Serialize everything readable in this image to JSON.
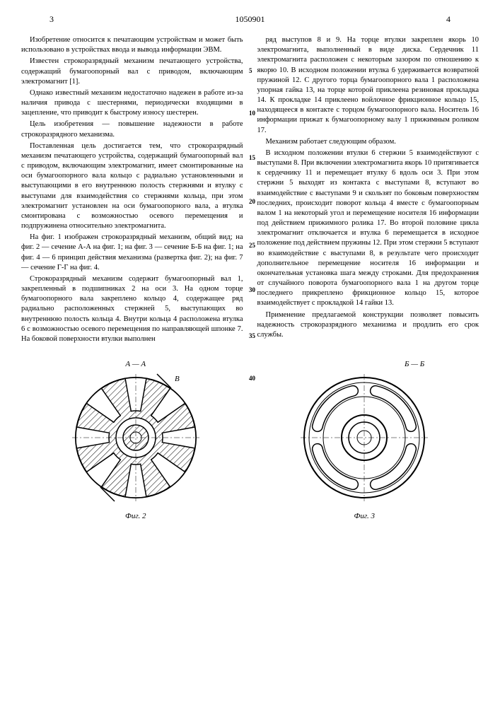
{
  "header": {
    "page_left": "3",
    "doc_number": "1050901",
    "page_right": "4"
  },
  "line_markers": [
    "5",
    "10",
    "15",
    "20",
    "25",
    "30",
    "35",
    "40"
  ],
  "left_column": {
    "p1": "Изобретение относится к печатающим устройствам и может быть использовано в устройствах ввода и вывода информации ЭВМ.",
    "p2": "Известен строкоразрядный механизм печатающего устройства, содержащий бумагоопорный вал с приводом, включающим электромагнит [1].",
    "p3": "Однако известный механизм недостаточно надежен в работе из-за наличия привода с шестернями, периодически входящими в зацепление, что приводит к быстрому износу шестерен.",
    "p4": "Цель изобретения — повышение надежности в работе строкоразрядного механизма.",
    "p5": "Поставленная цель достигается тем, что строкоразрядный механизм печатающего устройства, содержащий бумагоопорный вал с приводом, включающим электромагнит, имеет смонтированные на оси бумагоопорного вала кольцо с радиально установленными и выступающими в его внутреннюю полость стержнями и втулку с выступами для взаимодействия со стержнями кольца, при этом электромагнит установлен на оси бумагоопорного вала, а втулка смонтирована с возможностью осевого перемещения и подпружинена относительно электромагнита.",
    "p6": "На фиг. 1 изображен строкоразрядный механизм, общий вид; на фиг. 2 — сечение А-А на фиг. 1; на фиг. 3 — сечение Б-Б на фиг. 1; на фиг. 4 — 6 принцип действия механизма (развертка фиг. 2); на фиг. 7 — сечение Г-Г на фиг. 4.",
    "p7": "Строкоразрядный механизм содержит бумагоопорный вал 1, закрепленный в подшипниках 2 на оси 3. На одном торце бумагоопорного вала закреплено кольцо 4, содержащее ряд радиально расположенных стержней 5, выступающих во внутреннюю полость кольца 4. Внутри кольца 4 расположена втулка 6 с возможностью осевого перемещения по направляющей шпонке 7. На боковой поверхности втулки выполнен"
  },
  "right_column": {
    "p1": "ряд выступов 8 и 9. На торце втулки закреплен якорь 10 электромагнита, выполненный в виде диска. Сердечник 11 электромагнита расположен с некоторым зазором по отношению к якорю 10. В исходном положении втулка 6 удерживается возвратной пружиной 12. С другого торца бумагоопорного вала 1 расположена упорная гайка 13, на торце которой приклеена резиновая прокладка 14. К прокладке 14 приклеено войлочное фрикционное кольцо 15, находящееся в контакте с торцом бумагоопорного вала. Носитель 16 информации прижат к бумагоопорному валу 1 прижимным роликом 17.",
    "p2": "Механизм работает следующим образом.",
    "p3": "В исходном положении втулки 6 стержни 5 взаимодействуют с выступами 8. При включении электромагнита якорь 10 притягивается к сердечнику 11 и перемещает втулку 6 вдоль оси 3. При этом стержни 5 выходят из контакта с выступами 8, вступают во взаимодействие с выступами 9 и скользят по боковым поверхностям последних, происходит поворот кольца 4 вместе с бумагоопорным валом 1 на некоторый угол и перемещение носителя 16 информации под действием прижимного ролика 17. Во второй половине цикла электромагнит отключается и втулка 6 перемещается в исходное положение под действием пружины 12. При этом стержни 5 вступают во взаимодействие с выступами 8, в результате чего происходит дополнительное перемещение носителя 16 информации и окончательная установка шага между строками. Для предохранения от случайного поворота бумагоопорного вала 1 на другом торце последнего прикреплено фрикционное кольцо 15, которое взаимодействует с прокладкой 14 гайки 13.",
    "p4": "Применение предлагаемой конструкции позволяет повысить надежность строкоразрядного механизма и продлить его срок службы."
  },
  "figures": {
    "fig2": {
      "section_label": "А — А",
      "caption": "Фиг. 2",
      "outer_radius": 85,
      "inner_radius": 28,
      "hub_radius": 18,
      "teeth_count": 8,
      "colors": {
        "stroke": "#000000",
        "fill": "#ffffff",
        "hatch": "#000000"
      }
    },
    "fig3": {
      "section_label": "Б — Б",
      "caption": "Фиг. 3",
      "outer_radius": 85,
      "ring_outer": 78,
      "ring_inner": 58,
      "hub_radius": 32,
      "inner_hub": 22,
      "slot_count": 4,
      "colors": {
        "stroke": "#000000",
        "fill": "#ffffff"
      }
    }
  }
}
